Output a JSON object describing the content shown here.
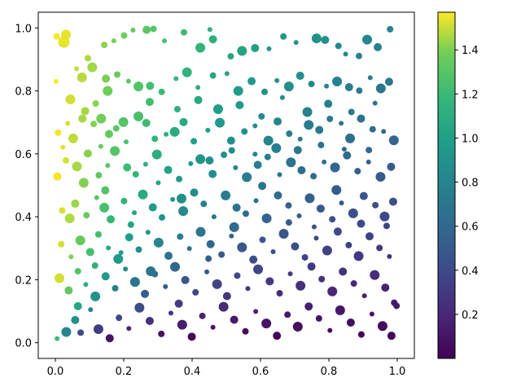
{
  "chart_data": {
    "type": "scatter",
    "title": "",
    "xlabel": "",
    "ylabel": "",
    "xlim": [
      -0.05,
      1.05
    ],
    "ylim": [
      -0.05,
      1.05
    ],
    "x_ticks": [
      "0.0",
      "0.2",
      "0.4",
      "0.6",
      "0.8",
      "1.0"
    ],
    "y_ticks": [
      "0.0",
      "0.2",
      "0.4",
      "0.6",
      "0.8",
      "1.0"
    ],
    "grid": false,
    "color_encoding": "arctan2(y, x) in radians",
    "size_encoding": "random marker sizes",
    "colormap": "viridis",
    "colorbar": {
      "range": [
        0.0,
        1.5708
      ],
      "ticks": [
        "0.2",
        "0.4",
        "0.6",
        "0.8",
        "1.0",
        "1.2",
        "1.4"
      ],
      "tick_values": [
        0.2,
        0.4,
        0.6,
        0.8,
        1.0,
        1.2,
        1.4
      ]
    },
    "points": [
      [
        0.004,
        0.973
      ],
      [
        0.025,
        0.955
      ],
      [
        0.031,
        0.979
      ],
      [
        0.062,
        0.87
      ],
      [
        0.095,
        0.904
      ],
      [
        0.108,
        0.875
      ],
      [
        0.143,
        0.946
      ],
      [
        0.171,
        0.959
      ],
      [
        0.201,
        0.976
      ],
      [
        0.227,
        0.993
      ],
      [
        0.267,
        0.994
      ],
      [
        0.287,
        0.997
      ],
      [
        0.319,
        0.959
      ],
      [
        0.376,
        0.986
      ],
      [
        0.452,
        0.995
      ],
      [
        0.424,
        0.937
      ],
      [
        0.461,
        0.964
      ],
      [
        0.513,
        0.91
      ],
      [
        0.546,
        0.927
      ],
      [
        0.584,
        0.936
      ],
      [
        0.625,
        0.934
      ],
      [
        0.667,
        0.973
      ],
      [
        0.704,
        0.954
      ],
      [
        0.764,
        0.967
      ],
      [
        0.789,
        0.962
      ],
      [
        0.828,
        0.943
      ],
      [
        0.849,
        0.917
      ],
      [
        0.888,
        0.911
      ],
      [
        0.912,
        0.963
      ],
      [
        0.943,
        0.939
      ],
      [
        0.979,
        0.996
      ],
      [
        0.002,
        0.83
      ],
      [
        0.044,
        0.773
      ],
      [
        0.087,
        0.736
      ],
      [
        0.118,
        0.76
      ],
      [
        0.153,
        0.8
      ],
      [
        0.148,
        0.839
      ],
      [
        0.181,
        0.852
      ],
      [
        0.214,
        0.831
      ],
      [
        0.243,
        0.814
      ],
      [
        0.277,
        0.816
      ],
      [
        0.311,
        0.797
      ],
      [
        0.353,
        0.839
      ],
      [
        0.385,
        0.859
      ],
      [
        0.418,
        0.771
      ],
      [
        0.461,
        0.849
      ],
      [
        0.502,
        0.855
      ],
      [
        0.535,
        0.8
      ],
      [
        0.574,
        0.831
      ],
      [
        0.612,
        0.797
      ],
      [
        0.648,
        0.833
      ],
      [
        0.683,
        0.814
      ],
      [
        0.716,
        0.848
      ],
      [
        0.749,
        0.822
      ],
      [
        0.793,
        0.815
      ],
      [
        0.824,
        0.83
      ],
      [
        0.859,
        0.812
      ],
      [
        0.889,
        0.801
      ],
      [
        0.921,
        0.842
      ],
      [
        0.952,
        0.808
      ],
      [
        0.976,
        0.829
      ],
      [
        0.008,
        0.667
      ],
      [
        0.036,
        0.697
      ],
      [
        0.052,
        0.649
      ],
      [
        0.079,
        0.712
      ],
      [
        0.112,
        0.695
      ],
      [
        0.134,
        0.712
      ],
      [
        0.157,
        0.663
      ],
      [
        0.178,
        0.681
      ],
      [
        0.207,
        0.638
      ],
      [
        0.243,
        0.719
      ],
      [
        0.266,
        0.698
      ],
      [
        0.291,
        0.648
      ],
      [
        0.324,
        0.662
      ],
      [
        0.349,
        0.67
      ],
      [
        0.375,
        0.701
      ],
      [
        0.405,
        0.64
      ],
      [
        0.446,
        0.675
      ],
      [
        0.481,
        0.699
      ],
      [
        0.514,
        0.642
      ],
      [
        0.553,
        0.671
      ],
      [
        0.584,
        0.689
      ],
      [
        0.623,
        0.642
      ],
      [
        0.65,
        0.703
      ],
      [
        0.684,
        0.664
      ],
      [
        0.716,
        0.647
      ],
      [
        0.741,
        0.692
      ],
      [
        0.772,
        0.676
      ],
      [
        0.803,
        0.711
      ],
      [
        0.836,
        0.697
      ],
      [
        0.862,
        0.649
      ],
      [
        0.894,
        0.712
      ],
      [
        0.928,
        0.678
      ],
      [
        0.96,
        0.671
      ],
      [
        0.99,
        0.643
      ],
      [
        0.006,
        0.528
      ],
      [
        0.031,
        0.579
      ],
      [
        0.063,
        0.56
      ],
      [
        0.095,
        0.601
      ],
      [
        0.127,
        0.532
      ],
      [
        0.153,
        0.563
      ],
      [
        0.174,
        0.609
      ],
      [
        0.21,
        0.557
      ],
      [
        0.235,
        0.535
      ],
      [
        0.264,
        0.567
      ],
      [
        0.297,
        0.598
      ],
      [
        0.33,
        0.549
      ],
      [
        0.362,
        0.52
      ],
      [
        0.396,
        0.569
      ],
      [
        0.424,
        0.583
      ],
      [
        0.46,
        0.536
      ],
      [
        0.493,
        0.597
      ],
      [
        0.527,
        0.556
      ],
      [
        0.56,
        0.526
      ],
      [
        0.592,
        0.565
      ],
      [
        0.621,
        0.59
      ],
      [
        0.656,
        0.534
      ],
      [
        0.689,
        0.573
      ],
      [
        0.72,
        0.548
      ],
      [
        0.755,
        0.529
      ],
      [
        0.786,
        0.574
      ],
      [
        0.818,
        0.557
      ],
      [
        0.853,
        0.595
      ],
      [
        0.884,
        0.545
      ],
      [
        0.916,
        0.574
      ],
      [
        0.951,
        0.527
      ],
      [
        0.982,
        0.559
      ],
      [
        0.02,
        0.42
      ],
      [
        0.042,
        0.395
      ],
      [
        0.058,
        0.442
      ],
      [
        0.091,
        0.405
      ],
      [
        0.121,
        0.461
      ],
      [
        0.143,
        0.429
      ],
      [
        0.162,
        0.392
      ],
      [
        0.201,
        0.45
      ],
      [
        0.231,
        0.413
      ],
      [
        0.256,
        0.471
      ],
      [
        0.285,
        0.43
      ],
      [
        0.312,
        0.398
      ],
      [
        0.343,
        0.455
      ],
      [
        0.374,
        0.418
      ],
      [
        0.406,
        0.477
      ],
      [
        0.434,
        0.441
      ],
      [
        0.464,
        0.4
      ],
      [
        0.498,
        0.468
      ],
      [
        0.53,
        0.429
      ],
      [
        0.557,
        0.41
      ],
      [
        0.587,
        0.451
      ],
      [
        0.618,
        0.395
      ],
      [
        0.651,
        0.468
      ],
      [
        0.682,
        0.436
      ],
      [
        0.713,
        0.403
      ],
      [
        0.744,
        0.459
      ],
      [
        0.776,
        0.426
      ],
      [
        0.81,
        0.392
      ],
      [
        0.837,
        0.444
      ],
      [
        0.871,
        0.411
      ],
      [
        0.902,
        0.466
      ],
      [
        0.936,
        0.437
      ],
      [
        0.963,
        0.401
      ],
      [
        0.988,
        0.448
      ],
      [
        0.017,
        0.313
      ],
      [
        0.046,
        0.273
      ],
      [
        0.073,
        0.325
      ],
      [
        0.102,
        0.288
      ],
      [
        0.126,
        0.344
      ],
      [
        0.155,
        0.301
      ],
      [
        0.184,
        0.266
      ],
      [
        0.216,
        0.335
      ],
      [
        0.244,
        0.296
      ],
      [
        0.271,
        0.351
      ],
      [
        0.302,
        0.318
      ],
      [
        0.331,
        0.276
      ],
      [
        0.365,
        0.337
      ],
      [
        0.392,
        0.299
      ],
      [
        0.425,
        0.352
      ],
      [
        0.454,
        0.313
      ],
      [
        0.486,
        0.28
      ],
      [
        0.515,
        0.339
      ],
      [
        0.546,
        0.303
      ],
      [
        0.579,
        0.264
      ],
      [
        0.606,
        0.327
      ],
      [
        0.637,
        0.289
      ],
      [
        0.668,
        0.346
      ],
      [
        0.701,
        0.306
      ],
      [
        0.73,
        0.271
      ],
      [
        0.763,
        0.332
      ],
      [
        0.795,
        0.293
      ],
      [
        0.826,
        0.353
      ],
      [
        0.858,
        0.31
      ],
      [
        0.887,
        0.275
      ],
      [
        0.919,
        0.338
      ],
      [
        0.948,
        0.301
      ],
      [
        0.977,
        0.274
      ],
      [
        0.012,
        0.205
      ],
      [
        0.039,
        0.166
      ],
      [
        0.066,
        0.227
      ],
      [
        0.089,
        0.185
      ],
      [
        0.117,
        0.147
      ],
      [
        0.147,
        0.211
      ],
      [
        0.175,
        0.173
      ],
      [
        0.205,
        0.234
      ],
      [
        0.233,
        0.193
      ],
      [
        0.262,
        0.155
      ],
      [
        0.291,
        0.218
      ],
      [
        0.322,
        0.178
      ],
      [
        0.35,
        0.241
      ],
      [
        0.38,
        0.199
      ],
      [
        0.41,
        0.16
      ],
      [
        0.443,
        0.225
      ],
      [
        0.473,
        0.186
      ],
      [
        0.502,
        0.148
      ],
      [
        0.532,
        0.213
      ],
      [
        0.563,
        0.172
      ],
      [
        0.593,
        0.233
      ],
      [
        0.627,
        0.195
      ],
      [
        0.656,
        0.157
      ],
      [
        0.687,
        0.219
      ],
      [
        0.717,
        0.181
      ],
      [
        0.749,
        0.242
      ],
      [
        0.779,
        0.202
      ],
      [
        0.81,
        0.163
      ],
      [
        0.841,
        0.226
      ],
      [
        0.873,
        0.188
      ],
      [
        0.904,
        0.149
      ],
      [
        0.934,
        0.215
      ],
      [
        0.965,
        0.175
      ],
      [
        0.991,
        0.127
      ],
      [
        0.005,
        0.013
      ],
      [
        0.032,
        0.034
      ],
      [
        0.058,
        0.072
      ],
      [
        0.074,
        0.032
      ],
      [
        0.103,
        0.105
      ],
      [
        0.126,
        0.043
      ],
      [
        0.159,
        0.014
      ],
      [
        0.186,
        0.079
      ],
      [
        0.215,
        0.045
      ],
      [
        0.246,
        0.111
      ],
      [
        0.276,
        0.069
      ],
      [
        0.31,
        0.028
      ],
      [
        0.338,
        0.094
      ],
      [
        0.371,
        0.057
      ],
      [
        0.399,
        0.019
      ],
      [
        0.43,
        0.085
      ],
      [
        0.461,
        0.049
      ],
      [
        0.492,
        0.114
      ],
      [
        0.523,
        0.073
      ],
      [
        0.556,
        0.036
      ],
      [
        0.586,
        0.099
      ],
      [
        0.617,
        0.061
      ],
      [
        0.648,
        0.022
      ],
      [
        0.679,
        0.089
      ],
      [
        0.709,
        0.051
      ],
      [
        0.741,
        0.115
      ],
      [
        0.771,
        0.077
      ],
      [
        0.803,
        0.039
      ],
      [
        0.833,
        0.103
      ],
      [
        0.864,
        0.064
      ],
      [
        0.895,
        0.026
      ],
      [
        0.926,
        0.091
      ],
      [
        0.957,
        0.053
      ],
      [
        0.983,
        0.022
      ],
      [
        0.998,
        0.117
      ],
      [
        0.133,
        0.624
      ],
      [
        0.199,
        0.701
      ],
      [
        0.276,
        0.765
      ],
      [
        0.357,
        0.742
      ],
      [
        0.417,
        0.811
      ],
      [
        0.476,
        0.742
      ],
      [
        0.539,
        0.755
      ],
      [
        0.603,
        0.719
      ],
      [
        0.664,
        0.779
      ],
      [
        0.737,
        0.733
      ],
      [
        0.798,
        0.759
      ],
      [
        0.866,
        0.733
      ],
      [
        0.935,
        0.761
      ],
      [
        0.078,
        0.843
      ],
      [
        0.066,
        0.116
      ],
      [
        0.116,
        0.245
      ],
      [
        0.192,
        0.286
      ],
      [
        0.279,
        0.227
      ],
      [
        0.361,
        0.124
      ],
      [
        0.448,
        0.267
      ],
      [
        0.523,
        0.367
      ],
      [
        0.605,
        0.498
      ],
      [
        0.683,
        0.382
      ],
      [
        0.757,
        0.368
      ],
      [
        0.822,
        0.485
      ],
      [
        0.894,
        0.378
      ],
      [
        0.969,
        0.371
      ],
      [
        0.022,
        0.621
      ],
      [
        0.083,
        0.508
      ],
      [
        0.146,
        0.484
      ],
      [
        0.221,
        0.375
      ],
      [
        0.301,
        0.508
      ],
      [
        0.369,
        0.458
      ],
      [
        0.451,
        0.579
      ],
      [
        0.516,
        0.611
      ],
      [
        0.584,
        0.599
      ],
      [
        0.646,
        0.618
      ],
      [
        0.709,
        0.612
      ],
      [
        0.777,
        0.628
      ],
      [
        0.845,
        0.615
      ],
      [
        0.917,
        0.612
      ]
    ],
    "sizes": [
      4,
      7,
      6,
      3,
      4,
      6,
      4,
      3,
      4,
      3,
      5,
      4,
      3,
      4,
      3,
      6,
      5,
      4,
      6,
      5,
      3,
      4,
      3,
      6,
      5,
      4,
      3,
      4,
      6,
      5,
      4,
      3,
      6,
      5,
      4,
      6,
      5,
      4,
      3,
      6,
      5,
      4,
      3,
      6,
      5,
      4,
      3,
      6,
      5,
      4,
      3,
      6,
      5,
      4,
      3,
      6,
      5,
      4,
      3,
      6,
      5,
      4,
      3,
      6,
      5,
      4,
      6,
      5,
      4,
      3,
      6,
      5,
      4,
      3,
      6,
      5,
      4,
      3,
      6,
      5,
      4,
      3,
      6,
      5,
      4,
      3,
      6,
      5,
      4,
      3,
      6,
      5,
      4,
      3,
      6,
      5,
      4,
      6,
      5,
      4,
      3,
      6,
      5,
      4,
      3,
      6,
      5,
      4,
      3,
      6,
      5,
      4,
      3,
      6,
      5,
      4,
      3,
      6,
      5,
      4,
      3,
      6,
      5,
      4,
      3,
      6,
      5,
      4,
      6,
      5,
      4,
      3,
      6,
      5,
      4,
      3,
      6,
      5,
      4,
      3,
      6,
      5,
      4,
      3,
      6,
      5,
      4,
      3,
      6,
      5,
      4,
      3,
      6,
      5,
      4,
      3,
      6,
      5,
      4,
      6,
      5,
      4,
      3,
      6,
      5,
      4,
      3,
      6,
      5,
      4,
      3,
      6,
      5,
      4,
      3,
      6,
      5,
      4,
      3,
      6,
      5,
      4,
      3,
      6,
      5,
      4,
      3,
      6,
      5,
      4,
      6,
      5,
      4,
      3,
      6,
      5,
      4,
      3,
      6,
      5,
      4,
      3,
      6,
      5,
      4,
      3,
      6,
      5,
      4,
      3,
      6,
      5,
      4,
      3,
      6,
      5,
      4,
      3,
      6,
      5,
      4,
      6,
      5,
      4,
      3,
      6,
      5,
      4,
      3,
      6,
      5,
      4,
      3,
      6,
      5,
      4,
      3,
      6,
      5,
      4,
      3,
      6,
      5,
      4,
      3,
      6,
      5,
      4,
      3,
      6,
      5,
      4,
      6,
      5,
      4,
      3,
      6,
      5,
      4,
      3,
      6,
      5,
      4,
      3,
      6,
      5,
      4,
      3,
      6,
      5,
      4,
      3,
      6,
      5,
      4,
      3,
      6,
      5,
      4,
      3,
      6,
      5,
      4,
      6,
      5,
      4,
      3,
      6,
      5,
      4,
      3,
      6,
      5,
      4,
      3,
      6,
      5,
      4,
      3,
      6,
      5,
      4,
      3
    ]
  }
}
